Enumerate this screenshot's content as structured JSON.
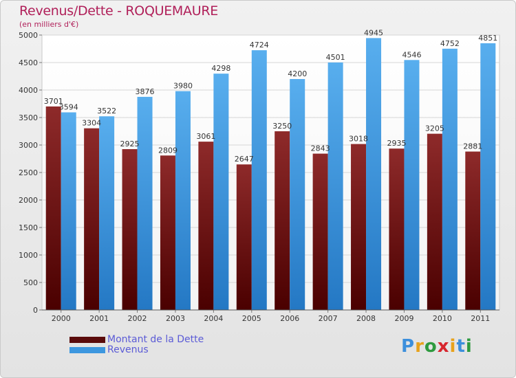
{
  "chart_data": {
    "type": "bar",
    "title": "Revenus/Dette - ROQUEMAURE",
    "subtitle": "(en milliers d'€)",
    "categories": [
      "2000",
      "2001",
      "2002",
      "2003",
      "2004",
      "2005",
      "2006",
      "2007",
      "2008",
      "2009",
      "2010",
      "2011"
    ],
    "series": [
      {
        "name": "Montant de la Dette",
        "color": "#7a1a1a",
        "values": [
          3701,
          3304,
          2925,
          2809,
          3061,
          2647,
          3250,
          2843,
          3018,
          2935,
          3205,
          2881
        ],
        "labels": [
          "3701",
          "3304",
          "2925",
          "2809",
          "3061",
          "2647",
          "3250",
          "2843",
          "3018",
          "2935",
          "3205",
          "2881"
        ]
      },
      {
        "name": "Revenus",
        "color": "#3d97df",
        "values": [
          3594,
          3522,
          3876,
          3980,
          4298,
          4724,
          4200,
          4501,
          4945,
          4546,
          4752,
          4851
        ],
        "labels": [
          "3594",
          "3522",
          "3876",
          "3980",
          "4298",
          "4724",
          "4200",
          "4501",
          "4945",
          "4546",
          "4752",
          "4851"
        ]
      }
    ],
    "yticks": [
      "0",
      "500",
      "1000",
      "1500",
      "2000",
      "2500",
      "3000",
      "3500",
      "4000",
      "4500",
      "5000"
    ],
    "ylim": [
      0,
      5000
    ],
    "grid": true,
    "legend": "bottom-left"
  },
  "logo": {
    "letters": [
      "P",
      "r",
      "o",
      "x",
      "i",
      "t",
      "i"
    ],
    "colors": [
      "#3c8fdc",
      "#e8a21c",
      "#2e9a3f",
      "#d7262e",
      "#e8a21c",
      "#3c8fdc",
      "#2e9a3f"
    ]
  }
}
